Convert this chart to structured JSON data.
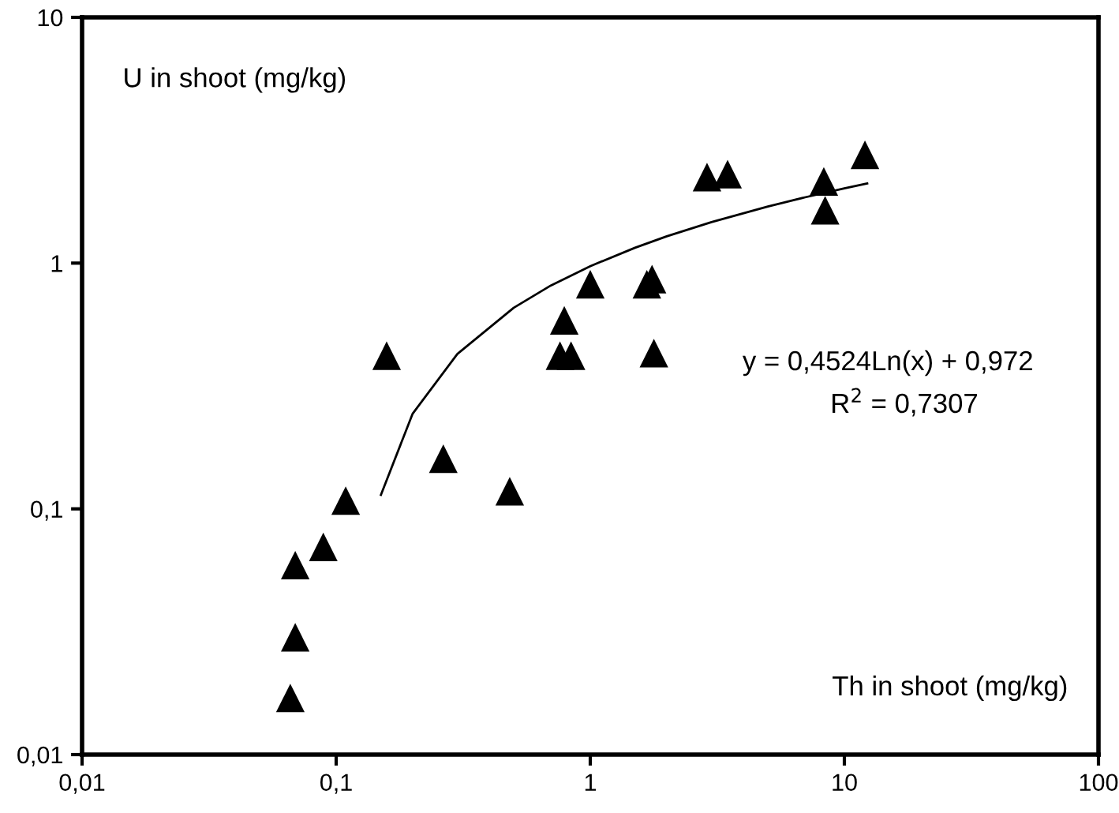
{
  "chart_data": {
    "type": "scatter",
    "xlabel": "Th in shoot (mg/kg)",
    "ylabel": "U in shoot (mg/kg)",
    "log": "xy",
    "grid": false,
    "legend": false,
    "marker": "triangle",
    "xlim": [
      0.01,
      100
    ],
    "ylim": [
      0.01,
      10
    ],
    "xticks": [
      {
        "value": 0.01,
        "label": "0,01"
      },
      {
        "value": 0.1,
        "label": "0,1"
      },
      1,
      10,
      100
    ],
    "yticks": [
      {
        "value": 0.01,
        "label": "0,01"
      },
      {
        "value": 0.1,
        "label": "0,1"
      },
      1,
      10
    ],
    "series": [
      {
        "color": "#000000",
        "x": [
          0.066,
          0.069,
          0.069,
          0.089,
          0.109,
          0.158,
          0.264,
          0.482,
          0.76,
          0.84,
          0.79,
          1.0,
          1.67,
          1.75,
          1.78,
          2.88,
          3.47,
          8.3,
          8.4,
          12.05
        ],
        "values": [
          0.017,
          0.03,
          0.059,
          0.07,
          0.108,
          0.42,
          0.16,
          0.118,
          0.42,
          0.42,
          0.585,
          0.82,
          0.82,
          0.86,
          0.43,
          2.24,
          2.3,
          2.15,
          1.64,
          2.76
        ]
      },
      {
        "type": "line",
        "color": "#000000",
        "marker": "none",
        "x": [
          0.15,
          0.2,
          0.3,
          0.5,
          0.7,
          1,
          1.5,
          2,
          3,
          5,
          7,
          10,
          12.3
        ],
        "values": [
          0.114,
          0.244,
          0.427,
          0.658,
          0.811,
          0.972,
          1.155,
          1.286,
          1.469,
          1.7,
          1.852,
          2.014,
          2.108
        ]
      }
    ],
    "annotations": [
      "y = 0,4524Ln(x) + 0,972",
      "R$^{2}$ = 0,7307"
    ]
  }
}
